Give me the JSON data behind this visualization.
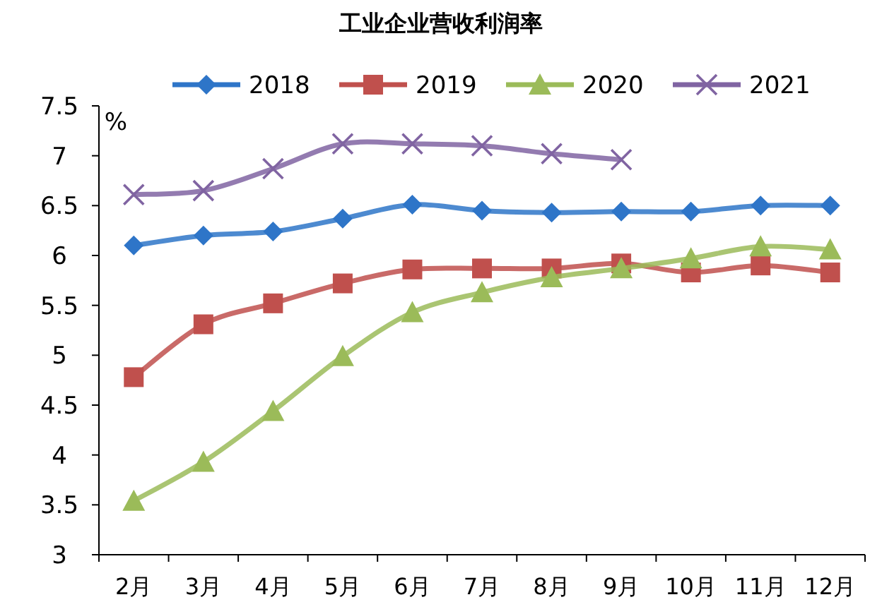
{
  "chart_data": {
    "type": "line",
    "title": "工业企业营收利润率",
    "ylabel": "%",
    "categories": [
      "2月",
      "3月",
      "4月",
      "5月",
      "6月",
      "7月",
      "8月",
      "9月",
      "10月",
      "11月",
      "12月"
    ],
    "series": [
      {
        "name": "2018",
        "color": "#2e75c8",
        "marker": "diamond",
        "values": [
          6.1,
          6.2,
          6.24,
          6.37,
          6.51,
          6.45,
          6.43,
          6.44,
          6.44,
          6.5,
          6.5
        ]
      },
      {
        "name": "2019",
        "color": "#c0504d",
        "marker": "square",
        "values": [
          4.78,
          5.31,
          5.52,
          5.72,
          5.86,
          5.87,
          5.87,
          5.92,
          5.83,
          5.9,
          5.83
        ]
      },
      {
        "name": "2020",
        "color": "#9bbb59",
        "marker": "triangle",
        "values": [
          3.54,
          3.93,
          4.44,
          4.99,
          5.43,
          5.63,
          5.78,
          5.87,
          5.97,
          6.09,
          6.06
        ]
      },
      {
        "name": "2021",
        "color": "#8064a2",
        "marker": "cross",
        "values": [
          6.61,
          6.65,
          6.87,
          7.12,
          7.12,
          7.1,
          7.02,
          6.96,
          null,
          null,
          null
        ]
      }
    ],
    "ylim": [
      3,
      7.5
    ],
    "yticks": [
      3,
      3.5,
      4,
      4.5,
      5,
      5.5,
      6,
      6.5,
      7,
      7.5
    ],
    "legend": "top",
    "grid": false
  }
}
